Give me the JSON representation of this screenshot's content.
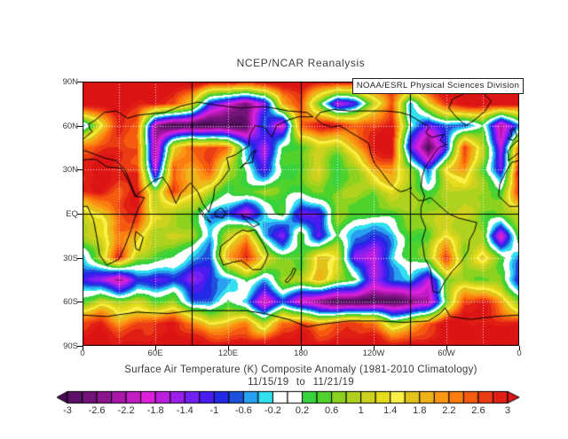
{
  "plot": {
    "title": "NCEP/NCAR Reanalysis",
    "watermark": "NOAA/ESRL Physical Sciences Division",
    "caption_line1": "Surface Air Temperature (K) Composite Anomaly (1981-2010 Climatology)",
    "caption_line2": "11/15/19 to 11/21/19"
  },
  "chart_data": {
    "type": "heatmap",
    "title": "NCEP/NCAR Reanalysis",
    "variable": "Surface Air Temperature (K) Composite Anomaly (1981-2010 Climatology)",
    "period": "11/15/19 to 11/21/19",
    "units": "K",
    "projection": "equirectangular, longitude 0E eastward to 360E",
    "lon_tick_labels": [
      "0",
      "60E",
      "120E",
      "180",
      "120W",
      "60W",
      "0"
    ],
    "lat_tick_labels": [
      "90N",
      "60N",
      "30N",
      "EQ",
      "30S",
      "60S",
      "90S"
    ],
    "level_min": -3,
    "level_max": 3,
    "level_step": 0.2,
    "colorbar": {
      "tick_labels": [
        "-3",
        "-2.6",
        "-2.2",
        "-1.8",
        "-1.4",
        "-1",
        "-0.6",
        "-0.2",
        "0.2",
        "0.6",
        "1",
        "1.4",
        "1.8",
        "2.2",
        "2.6",
        "3"
      ],
      "under_color": "#470B50",
      "over_color": "#DC1414",
      "cell_colors": [
        "#5C1066",
        "#71137A",
        "#8C158C",
        "#A817A8",
        "#C41CC4",
        "#DC20DC",
        "#BE1EE0",
        "#9B1EEB",
        "#7320F5",
        "#4A1CF0",
        "#2328E6",
        "#1E50DC",
        "#28A0F0",
        "#32E1F0",
        "#FFFFFF",
        "#FFFFFF",
        "#37D23C",
        "#50D22D",
        "#8CD21E",
        "#AFD21E",
        "#CDD21E",
        "#E6DC1E",
        "#FAF046",
        "#E1C319",
        "#F0B419",
        "#FA9614",
        "#FA7D0F",
        "#F55A0F",
        "#EB3C14",
        "#E11E14"
      ]
    },
    "grid": {
      "lons": [
        0,
        15,
        30,
        45,
        60,
        75,
        90,
        105,
        120,
        135,
        150,
        165,
        180,
        195,
        210,
        225,
        240,
        255,
        270,
        285,
        300,
        315,
        330,
        345,
        360
      ],
      "lats": [
        90,
        75,
        60,
        45,
        30,
        15,
        0,
        -15,
        -30,
        -45,
        -60,
        -75,
        -90
      ],
      "values": [
        [
          3.2,
          3.2,
          3.2,
          3.2,
          3.2,
          3.2,
          3.2,
          3.2,
          3.2,
          3.2,
          3.2,
          3.2,
          3.2,
          3.2,
          3.2,
          3.2,
          3.2,
          3.2,
          3.2,
          3.2,
          3.2,
          3.2,
          3.2,
          3.2,
          3.2
        ],
        [
          3.2,
          3.2,
          3.2,
          3.0,
          3.0,
          2.8,
          1.5,
          -1.0,
          -2.0,
          -2.5,
          -1.5,
          2.0,
          2.5,
          0.5,
          -1.8,
          -1.0,
          1.0,
          2.5,
          -0.5,
          1.5,
          3.0,
          3.2,
          3.2,
          3.2,
          3.2
        ],
        [
          -0.5,
          1.5,
          2.8,
          2.5,
          -2.5,
          -3.2,
          -3.2,
          -3.2,
          -3.2,
          -3.0,
          -0.5,
          -2.2,
          2.5,
          3.0,
          3.1,
          2.5,
          2.8,
          3.0,
          0.0,
          -1.5,
          -0.5,
          -0.8,
          0.3,
          -2.6,
          -0.5
        ],
        [
          2.5,
          2.8,
          2.8,
          2.5,
          -2.5,
          1.5,
          2.6,
          2.6,
          2.4,
          -0.5,
          -1.6,
          0.3,
          0.5,
          1.0,
          0.8,
          1.8,
          3.2,
          3.2,
          -1.2,
          -3.2,
          -1.0,
          2.8,
          1.2,
          -1.8,
          2.5
        ],
        [
          3.0,
          3.2,
          3.0,
          2.6,
          -1.8,
          2.4,
          2.0,
          2.6,
          1.0,
          0.0,
          -1.2,
          0.3,
          0.6,
          1.2,
          0.2,
          0.6,
          2.0,
          2.2,
          0.8,
          -0.8,
          1.5,
          2.2,
          0.5,
          -1.2,
          3.0
        ],
        [
          2.8,
          3.0,
          2.6,
          3.0,
          0.8,
          2.6,
          1.8,
          1.0,
          0.3,
          0.5,
          0.8,
          0.5,
          0.3,
          0.8,
          0.5,
          1.0,
          0.5,
          1.5,
          0.8,
          0.3,
          0.8,
          1.0,
          0.8,
          0.5,
          2.8
        ],
        [
          1.0,
          1.5,
          2.6,
          3.0,
          1.2,
          0.8,
          0.5,
          -0.5,
          -0.8,
          -1.8,
          -0.5,
          0.5,
          -1.5,
          -1.0,
          0.8,
          0.5,
          0.3,
          0.5,
          0.8,
          1.0,
          0.8,
          1.2,
          0.5,
          0.8,
          1.0
        ],
        [
          0.8,
          1.2,
          2.2,
          2.0,
          0.8,
          1.2,
          0.8,
          -0.3,
          1.0,
          2.2,
          -0.5,
          -1.5,
          0.5,
          -1.2,
          0.3,
          -0.5,
          -1.0,
          -0.5,
          0.5,
          0.5,
          1.5,
          0.8,
          0.8,
          -2.2,
          0.8
        ],
        [
          -0.5,
          1.0,
          2.8,
          1.0,
          0.5,
          0.3,
          -0.5,
          -0.8,
          2.0,
          3.0,
          1.5,
          0.5,
          0.3,
          1.8,
          1.5,
          -1.5,
          -1.8,
          -0.5,
          0.5,
          0.8,
          3.0,
          0.5,
          1.8,
          0.3,
          -0.5
        ],
        [
          -1.0,
          -1.5,
          -2.6,
          -1.0,
          -1.2,
          -0.8,
          -1.5,
          -1.0,
          -0.5,
          0.3,
          -0.3,
          0.8,
          1.0,
          1.8,
          1.0,
          0.3,
          -1.5,
          -0.8,
          -0.3,
          -1.8,
          0.8,
          0.8,
          0.5,
          0.5,
          -1.0
        ],
        [
          0.5,
          1.2,
          0.8,
          1.0,
          0.5,
          0.8,
          -0.5,
          -0.8,
          0.3,
          -0.5,
          -2.2,
          -0.8,
          -2.0,
          -2.8,
          -3.2,
          -3.2,
          -3.0,
          -3.2,
          -2.8,
          -2.5,
          0.5,
          2.8,
          3.0,
          2.0,
          0.5
        ],
        [
          2.8,
          3.0,
          2.2,
          2.5,
          2.8,
          3.0,
          2.5,
          1.5,
          1.8,
          2.2,
          1.0,
          2.5,
          2.8,
          2.0,
          2.5,
          2.8,
          2.5,
          1.0,
          1.5,
          2.5,
          3.2,
          3.2,
          3.0,
          3.0,
          2.8
        ],
        [
          3.2,
          3.2,
          3.2,
          3.2,
          3.2,
          3.2,
          3.2,
          3.2,
          3.2,
          3.2,
          3.2,
          3.2,
          3.2,
          3.2,
          3.2,
          3.2,
          3.2,
          3.2,
          3.2,
          3.2,
          3.2,
          3.2,
          3.2,
          3.2,
          3.2
        ]
      ]
    },
    "coastlines": {
      "africa": [
        [
          -6,
          35
        ],
        [
          3,
          37
        ],
        [
          11,
          37
        ],
        [
          20,
          32
        ],
        [
          32,
          31
        ],
        [
          34,
          28
        ],
        [
          38,
          22
        ],
        [
          43,
          12
        ],
        [
          51,
          11
        ],
        [
          45,
          2
        ],
        [
          40,
          -11
        ],
        [
          35,
          -22
        ],
        [
          30,
          -31
        ],
        [
          20,
          -35
        ],
        [
          14,
          -28
        ],
        [
          12,
          -17
        ],
        [
          9,
          -4
        ],
        [
          4,
          5
        ],
        [
          -8,
          5
        ],
        [
          -17,
          12
        ],
        [
          -16,
          20
        ],
        [
          -10,
          30
        ],
        [
          -6,
          35
        ]
      ],
      "eurasia": [
        [
          -9,
          36
        ],
        [
          2,
          43
        ],
        [
          18,
          38
        ],
        [
          28,
          36
        ],
        [
          35,
          30
        ],
        [
          44,
          12
        ],
        [
          58,
          22
        ],
        [
          66,
          25
        ],
        [
          71,
          19
        ],
        [
          77,
          7
        ],
        [
          81,
          14
        ],
        [
          89,
          21
        ],
        [
          95,
          15
        ],
        [
          99,
          7
        ],
        [
          104,
          1
        ],
        [
          108,
          11
        ],
        [
          109,
          18
        ],
        [
          114,
          22
        ],
        [
          121,
          30
        ],
        [
          119,
          38
        ],
        [
          126,
          40
        ],
        [
          131,
          43
        ],
        [
          137,
          46
        ],
        [
          138,
          54
        ],
        [
          142,
          60
        ],
        [
          150,
          59
        ],
        [
          156,
          52
        ],
        [
          160,
          60
        ],
        [
          170,
          64
        ],
        [
          178,
          66
        ],
        [
          185,
          66
        ],
        [
          190,
          66
        ],
        [
          185,
          69
        ],
        [
          170,
          70
        ],
        [
          150,
          73
        ],
        [
          130,
          72
        ],
        [
          110,
          74
        ],
        [
          95,
          76
        ],
        [
          80,
          73
        ],
        [
          68,
          69
        ],
        [
          55,
          68
        ],
        [
          45,
          67
        ],
        [
          37,
          65
        ],
        [
          28,
          70
        ],
        [
          18,
          69
        ],
        [
          11,
          64
        ],
        [
          5,
          61
        ],
        [
          6,
          58
        ],
        [
          8,
          56
        ],
        [
          1,
          51
        ],
        [
          -4,
          48
        ],
        [
          -9,
          43
        ],
        [
          -9,
          36
        ]
      ],
      "n_america": [
        [
          192,
          65
        ],
        [
          198,
          61
        ],
        [
          205,
          59
        ],
        [
          212,
          60
        ],
        [
          220,
          56
        ],
        [
          228,
          52
        ],
        [
          236,
          48
        ],
        [
          238,
          40
        ],
        [
          241,
          34
        ],
        [
          247,
          28
        ],
        [
          253,
          21
        ],
        [
          258,
          17
        ],
        [
          262,
          15
        ],
        [
          267,
          16
        ],
        [
          271,
          18
        ],
        [
          270,
          15
        ],
        [
          277,
          9
        ],
        [
          281,
          9
        ],
        [
          282,
          12
        ],
        [
          279,
          18
        ],
        [
          280,
          25
        ],
        [
          282,
          31
        ],
        [
          286,
          36
        ],
        [
          290,
          41
        ],
        [
          294,
          45
        ],
        [
          300,
          47
        ],
        [
          295,
          50
        ],
        [
          298,
          54
        ],
        [
          288,
          52
        ],
        [
          283,
          55
        ],
        [
          286,
          59
        ],
        [
          280,
          62
        ],
        [
          270,
          67
        ],
        [
          262,
          69
        ],
        [
          250,
          70
        ],
        [
          235,
          70
        ],
        [
          220,
          70
        ],
        [
          207,
          71
        ],
        [
          196,
          69
        ],
        [
          192,
          65
        ]
      ],
      "greenland": [
        [
          316,
          60
        ],
        [
          308,
          66
        ],
        [
          302,
          72
        ],
        [
          305,
          78
        ],
        [
          315,
          82
        ],
        [
          330,
          82
        ],
        [
          337,
          77
        ],
        [
          332,
          70
        ],
        [
          322,
          63
        ],
        [
          316,
          60
        ]
      ],
      "s_america": [
        [
          281,
          9
        ],
        [
          287,
          11
        ],
        [
          295,
          5
        ],
        [
          302,
          0
        ],
        [
          310,
          -3
        ],
        [
          325,
          -6
        ],
        [
          323,
          -12
        ],
        [
          319,
          -18
        ],
        [
          318,
          -25
        ],
        [
          312,
          -33
        ],
        [
          305,
          -39
        ],
        [
          298,
          -47
        ],
        [
          294,
          -54
        ],
        [
          289,
          -53
        ],
        [
          288,
          -46
        ],
        [
          287,
          -38
        ],
        [
          282,
          -30
        ],
        [
          280,
          -18
        ],
        [
          283,
          -10
        ],
        [
          279,
          -2
        ],
        [
          279,
          4
        ],
        [
          281,
          9
        ]
      ],
      "australia": [
        [
          114,
          -22
        ],
        [
          113,
          -28
        ],
        [
          116,
          -35
        ],
        [
          124,
          -33
        ],
        [
          131,
          -32
        ],
        [
          136,
          -35
        ],
        [
          140,
          -38
        ],
        [
          147,
          -38
        ],
        [
          150,
          -34
        ],
        [
          153,
          -28
        ],
        [
          150,
          -22
        ],
        [
          145,
          -15
        ],
        [
          142,
          -11
        ],
        [
          136,
          -12
        ],
        [
          132,
          -11
        ],
        [
          126,
          -14
        ],
        [
          122,
          -17
        ],
        [
          114,
          -22
        ]
      ],
      "antarctica": [
        [
          0,
          -69
        ],
        [
          20,
          -70
        ],
        [
          45,
          -67
        ],
        [
          70,
          -68
        ],
        [
          90,
          -66
        ],
        [
          110,
          -66
        ],
        [
          135,
          -66
        ],
        [
          150,
          -68
        ],
        [
          170,
          -72
        ],
        [
          185,
          -77
        ],
        [
          200,
          -75
        ],
        [
          220,
          -73
        ],
        [
          245,
          -73
        ],
        [
          265,
          -74
        ],
        [
          285,
          -73
        ],
        [
          295,
          -68
        ],
        [
          299,
          -64
        ],
        [
          303,
          -70
        ],
        [
          320,
          -72
        ],
        [
          340,
          -70
        ],
        [
          360,
          -69
        ]
      ],
      "madagascar": [
        [
          44,
          -12
        ],
        [
          50,
          -16
        ],
        [
          47,
          -25
        ],
        [
          44,
          -24
        ],
        [
          43,
          -17
        ],
        [
          44,
          -12
        ]
      ],
      "new_zealand": [
        [
          167,
          -46
        ],
        [
          170,
          -43
        ],
        [
          172,
          -41
        ],
        [
          174,
          -37
        ],
        [
          176,
          -38
        ],
        [
          173,
          -43
        ],
        [
          169,
          -47
        ],
        [
          167,
          -46
        ]
      ],
      "japan": [
        [
          130,
          31
        ],
        [
          134,
          34
        ],
        [
          140,
          35
        ],
        [
          141,
          40
        ],
        [
          143,
          43
        ],
        [
          140,
          42
        ],
        [
          136,
          36
        ],
        [
          131,
          32
        ],
        [
          130,
          31
        ]
      ],
      "uk": [
        [
          -5,
          50
        ],
        [
          -2,
          53
        ],
        [
          -4,
          58
        ],
        [
          -7,
          57
        ],
        [
          -6,
          53
        ],
        [
          -9,
          51
        ],
        [
          -5,
          50
        ]
      ],
      "borneo": [
        [
          109,
          1
        ],
        [
          114,
          4
        ],
        [
          118,
          1
        ],
        [
          116,
          -3
        ],
        [
          110,
          -2
        ],
        [
          109,
          1
        ]
      ],
      "new_guinea": [
        [
          131,
          -1
        ],
        [
          138,
          -3
        ],
        [
          146,
          -7
        ],
        [
          141,
          -9
        ],
        [
          134,
          -4
        ],
        [
          131,
          -1
        ]
      ],
      "sumatra": [
        [
          96,
          4
        ],
        [
          102,
          -2
        ],
        [
          106,
          -6
        ],
        [
          102,
          -4
        ],
        [
          96,
          2
        ],
        [
          96,
          4
        ]
      ]
    }
  }
}
